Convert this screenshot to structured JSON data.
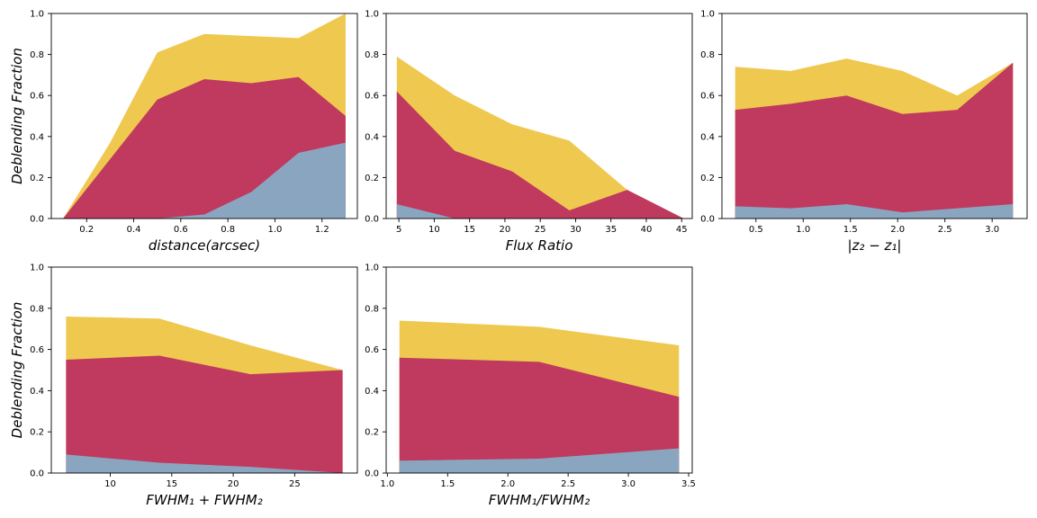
{
  "figure": {
    "colors": {
      "bottom": "#8aa5c0",
      "middle": "#c0395e",
      "top": "#efc84f"
    },
    "ylabel": "Deblending Fraction"
  },
  "chart_data": [
    {
      "type": "area",
      "xlabel": "distance(arcsec)",
      "xlim": [
        0.05,
        1.35
      ],
      "ylim": [
        0,
        1
      ],
      "xticks": [
        0.2,
        0.4,
        0.6,
        0.8,
        1.0,
        1.2
      ],
      "xtick_labels": [
        "0.2",
        "0.4",
        "0.6",
        "0.8",
        "1.0",
        "1.2"
      ],
      "yticks": [
        0,
        0.2,
        0.4,
        0.6,
        0.8,
        1.0
      ],
      "ytick_labels": [
        "0.0",
        "0.2",
        "0.4",
        "0.6",
        "0.8",
        "1.0"
      ],
      "show_ylabel": true,
      "x": [
        0.1,
        0.3,
        0.5,
        0.7,
        0.9,
        1.1,
        1.3
      ],
      "series": [
        {
          "values": [
            0.0,
            0.0,
            0.0,
            0.02,
            0.13,
            0.32,
            0.37
          ]
        },
        {
          "values": [
            0.0,
            0.29,
            0.58,
            0.68,
            0.66,
            0.69,
            0.5
          ]
        },
        {
          "values": [
            0.0,
            0.37,
            0.81,
            0.9,
            0.89,
            0.88,
            1.0
          ]
        }
      ]
    },
    {
      "type": "area",
      "xlabel": "Flux Ratio",
      "xlim": [
        3.2,
        46.5
      ],
      "ylim": [
        0,
        1
      ],
      "xticks": [
        5,
        10,
        15,
        20,
        25,
        30,
        35,
        40,
        45
      ],
      "xtick_labels": [
        "5",
        "10",
        "15",
        "20",
        "25",
        "30",
        "35",
        "40",
        "45"
      ],
      "yticks": [
        0,
        0.2,
        0.4,
        0.6,
        0.8,
        1.0
      ],
      "ytick_labels": [
        "0.0",
        "0.2",
        "0.4",
        "0.6",
        "0.8",
        "1.0"
      ],
      "show_ylabel": false,
      "x": [
        4.7,
        12.9,
        21.0,
        29.1,
        37.3,
        45.3
      ],
      "series": [
        {
          "values": [
            0.07,
            0.0,
            0.0,
            0.0,
            0.0,
            0.0
          ]
        },
        {
          "values": [
            0.62,
            0.33,
            0.23,
            0.04,
            0.14,
            0.0
          ]
        },
        {
          "values": [
            0.79,
            0.6,
            0.46,
            0.38,
            0.14,
            0.0
          ]
        }
      ]
    },
    {
      "type": "area",
      "xlabel": "|z₂ − z₁|",
      "xlim": [
        0.14,
        3.37
      ],
      "ylim": [
        0,
        1
      ],
      "xticks": [
        0.5,
        1.0,
        1.5,
        2.0,
        2.5,
        3.0
      ],
      "xtick_labels": [
        "0.5",
        "1.0",
        "1.5",
        "2.0",
        "2.5",
        "3.0"
      ],
      "yticks": [
        0,
        0.2,
        0.4,
        0.6,
        0.8,
        1.0
      ],
      "ytick_labels": [
        "0.0",
        "0.2",
        "0.4",
        "0.6",
        "0.8",
        "1.0"
      ],
      "show_ylabel": false,
      "x": [
        0.28,
        0.87,
        1.46,
        2.05,
        2.63,
        3.22
      ],
      "series": [
        {
          "values": [
            0.06,
            0.05,
            0.07,
            0.03,
            0.05,
            0.07
          ]
        },
        {
          "values": [
            0.53,
            0.56,
            0.6,
            0.51,
            0.53,
            0.76
          ]
        },
        {
          "values": [
            0.74,
            0.72,
            0.78,
            0.72,
            0.6,
            0.76
          ]
        }
      ]
    },
    {
      "type": "area",
      "xlabel": "FWHM₁ + FWHM₂",
      "xlim": [
        5.2,
        30.1
      ],
      "ylim": [
        0,
        1
      ],
      "xticks": [
        10,
        15,
        20,
        25
      ],
      "xtick_labels": [
        "10",
        "15",
        "20",
        "25"
      ],
      "yticks": [
        0,
        0.2,
        0.4,
        0.6,
        0.8,
        1.0
      ],
      "ytick_labels": [
        "0.0",
        "0.2",
        "0.4",
        "0.6",
        "0.8",
        "1.0"
      ],
      "show_ylabel": true,
      "x": [
        6.4,
        14.0,
        21.4,
        28.9
      ],
      "series": [
        {
          "values": [
            0.09,
            0.05,
            0.03,
            0.0
          ]
        },
        {
          "values": [
            0.55,
            0.57,
            0.48,
            0.5
          ]
        },
        {
          "values": [
            0.76,
            0.75,
            0.62,
            0.5
          ]
        }
      ]
    },
    {
      "type": "area",
      "xlabel": "FWHM₁/FWHM₂",
      "xlim": [
        0.99,
        3.53
      ],
      "ylim": [
        0,
        1
      ],
      "xticks": [
        1.0,
        1.5,
        2.0,
        2.5,
        3.0,
        3.5
      ],
      "xtick_labels": [
        "1.0",
        "1.5",
        "2.0",
        "2.5",
        "3.0",
        "3.5"
      ],
      "yticks": [
        0,
        0.2,
        0.4,
        0.6,
        0.8,
        1.0
      ],
      "ytick_labels": [
        "0.0",
        "0.2",
        "0.4",
        "0.6",
        "0.8",
        "1.0"
      ],
      "show_ylabel": false,
      "x": [
        1.1,
        2.26,
        3.42
      ],
      "series": [
        {
          "values": [
            0.06,
            0.07,
            0.12
          ]
        },
        {
          "values": [
            0.56,
            0.54,
            0.37
          ]
        },
        {
          "values": [
            0.74,
            0.71,
            0.62
          ]
        }
      ]
    }
  ]
}
